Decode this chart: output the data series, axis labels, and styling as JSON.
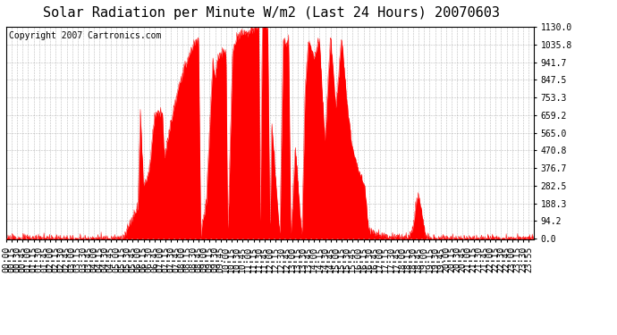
{
  "title": "Solar Radiation per Minute W/m2 (Last 24 Hours) 20070603",
  "copyright_text": "Copyright 2007 Cartronics.com",
  "yticks": [
    0.0,
    94.2,
    188.3,
    282.5,
    376.7,
    470.8,
    565.0,
    659.2,
    753.3,
    847.5,
    941.7,
    1035.8,
    1130.0
  ],
  "ymax": 1130.0,
  "ymin": 0.0,
  "fill_color": "#FF0000",
  "line_color": "#FF0000",
  "dashed_line_color": "#FF0000",
  "bg_color": "#FFFFFF",
  "plot_bg_color": "#FFFFFF",
  "grid_color": "#AAAAAA",
  "title_fontsize": 11,
  "copyright_fontsize": 7,
  "tick_fontsize": 7,
  "xtick_labels": [
    "00:00",
    "00:15",
    "00:30",
    "00:45",
    "01:00",
    "01:15",
    "01:30",
    "01:45",
    "02:00",
    "02:15",
    "02:30",
    "02:45",
    "03:00",
    "03:15",
    "03:30",
    "03:45",
    "04:00",
    "04:15",
    "04:30",
    "04:45",
    "05:00",
    "05:15",
    "05:30",
    "05:45",
    "06:00",
    "06:15",
    "06:30",
    "06:45",
    "07:00",
    "07:15",
    "07:30",
    "07:45",
    "08:00",
    "08:15",
    "08:30",
    "08:45",
    "09:00",
    "09:15",
    "09:30",
    "09:45",
    "10:00",
    "10:15",
    "10:30",
    "10:45",
    "11:00",
    "11:15",
    "11:30",
    "11:45",
    "12:00",
    "12:15",
    "12:30",
    "12:45",
    "13:00",
    "13:15",
    "13:30",
    "13:45",
    "14:00",
    "14:15",
    "14:30",
    "14:45",
    "15:00",
    "15:15",
    "15:30",
    "15:45",
    "16:00",
    "16:15",
    "16:30",
    "16:45",
    "17:00",
    "17:15",
    "17:30",
    "17:45",
    "18:00",
    "18:15",
    "18:30",
    "18:45",
    "19:00",
    "19:15",
    "19:30",
    "19:45",
    "20:00",
    "20:15",
    "20:30",
    "20:45",
    "21:00",
    "21:15",
    "21:30",
    "21:45",
    "22:00",
    "22:15",
    "22:30",
    "22:45",
    "23:00",
    "23:15",
    "23:30",
    "23:55"
  ]
}
